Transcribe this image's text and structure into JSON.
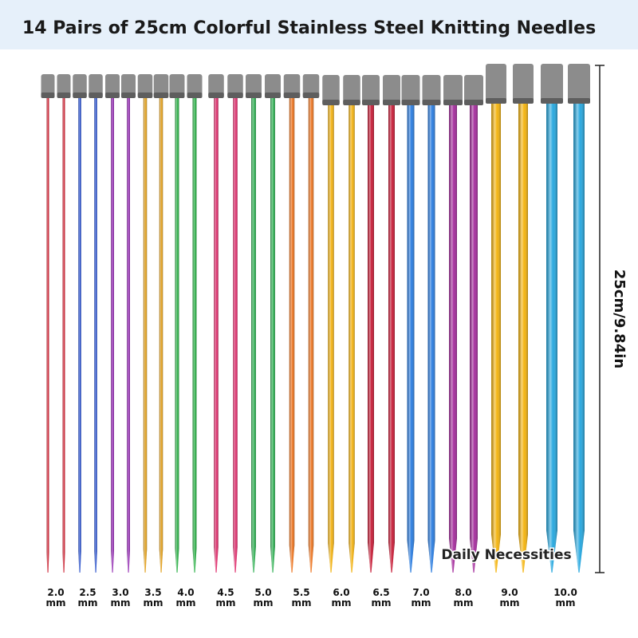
{
  "header": {
    "title": "14 Pairs of 25cm Colorful Stainless Steel Knitting Needles"
  },
  "dimension": "25cm/9.84in",
  "watermark": "Daily Necessities",
  "sizes": [
    {
      "size": "2.0",
      "unit": "mm"
    },
    {
      "size": "2.5",
      "unit": "mm"
    },
    {
      "size": "3.0",
      "unit": "mm"
    },
    {
      "size": "3.5",
      "unit": "mm"
    },
    {
      "size": "4.0",
      "unit": "mm"
    },
    {
      "size": "4.5",
      "unit": "mm"
    },
    {
      "size": "5.0",
      "unit": "mm"
    },
    {
      "size": "5.5",
      "unit": "mm"
    },
    {
      "size": "6.0",
      "unit": "mm"
    },
    {
      "size": "6.5",
      "unit": "mm"
    },
    {
      "size": "7.0",
      "unit": "mm"
    },
    {
      "size": "8.0",
      "unit": "mm"
    },
    {
      "size": "9.0",
      "unit": "mm"
    },
    {
      "size": "10.0",
      "unit": "mm"
    }
  ]
}
